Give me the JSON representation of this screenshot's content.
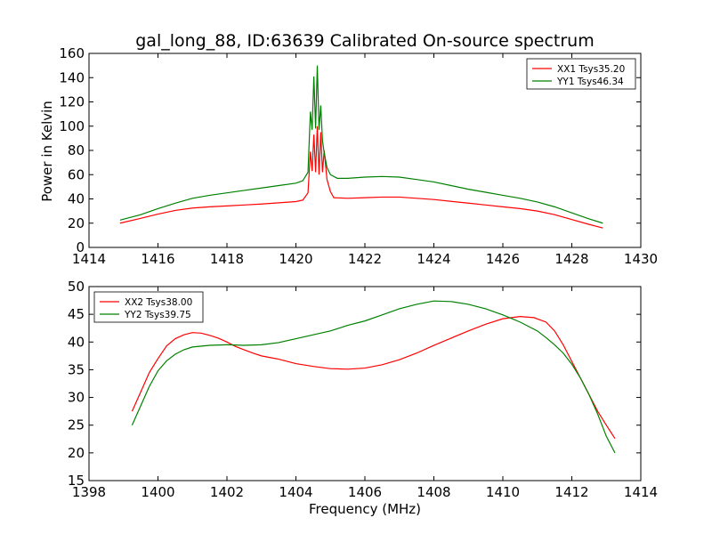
{
  "chart_data": [
    {
      "type": "line",
      "title": "gal_long_88, ID:63639 Calibrated On-source spectrum",
      "xlabel": "",
      "ylabel": "Power in Kelvin",
      "xlim": [
        1414,
        1430
      ],
      "ylim": [
        0,
        160
      ],
      "xticks": [
        1414,
        1416,
        1418,
        1420,
        1422,
        1424,
        1426,
        1428,
        1430
      ],
      "yticks": [
        0,
        20,
        40,
        60,
        80,
        100,
        120,
        140,
        160
      ],
      "legend_position": "top-right",
      "series": [
        {
          "name": "XX1 Tsys35.20",
          "color": "#ff0000",
          "points": [
            [
              1414.9,
              20
            ],
            [
              1415.5,
              24
            ],
            [
              1416,
              27.5
            ],
            [
              1416.5,
              30.5
            ],
            [
              1417,
              32.5
            ],
            [
              1417.5,
              33.5
            ],
            [
              1418,
              34.2
            ],
            [
              1418.5,
              35
            ],
            [
              1419,
              35.8
            ],
            [
              1419.5,
              36.8
            ],
            [
              1420,
              37.8
            ],
            [
              1420.2,
              39
            ],
            [
              1420.35,
              45
            ],
            [
              1420.42,
              79
            ],
            [
              1420.47,
              63
            ],
            [
              1420.52,
              93
            ],
            [
              1420.57,
              62
            ],
            [
              1420.62,
              100
            ],
            [
              1420.67,
              60
            ],
            [
              1420.72,
              95
            ],
            [
              1420.77,
              62
            ],
            [
              1420.82,
              80
            ],
            [
              1420.9,
              56
            ],
            [
              1421,
              46
            ],
            [
              1421.1,
              41
            ],
            [
              1421.5,
              40.5
            ],
            [
              1422,
              41
            ],
            [
              1422.5,
              41.5
            ],
            [
              1423,
              41.5
            ],
            [
              1423.5,
              40.5
            ],
            [
              1424,
              39.5
            ],
            [
              1424.5,
              38
            ],
            [
              1425,
              36.5
            ],
            [
              1425.5,
              35
            ],
            [
              1426,
              33.5
            ],
            [
              1426.5,
              32
            ],
            [
              1427,
              30
            ],
            [
              1427.5,
              27
            ],
            [
              1428,
              23
            ],
            [
              1428.5,
              19
            ],
            [
              1428.9,
              16
            ]
          ]
        },
        {
          "name": "YY1 Tsys46.34",
          "color": "#008000",
          "points": [
            [
              1414.9,
              22.5
            ],
            [
              1415.5,
              27
            ],
            [
              1416,
              32
            ],
            [
              1416.5,
              36.5
            ],
            [
              1417,
              40.5
            ],
            [
              1417.5,
              43
            ],
            [
              1418,
              45
            ],
            [
              1418.5,
              47
            ],
            [
              1419,
              49
            ],
            [
              1419.5,
              51
            ],
            [
              1420,
              53
            ],
            [
              1420.2,
              55
            ],
            [
              1420.35,
              62
            ],
            [
              1420.42,
              112
            ],
            [
              1420.47,
              97
            ],
            [
              1420.52,
              141
            ],
            [
              1420.57,
              98
            ],
            [
              1420.62,
              150
            ],
            [
              1420.67,
              97
            ],
            [
              1420.72,
              117
            ],
            [
              1420.77,
              88
            ],
            [
              1420.82,
              78
            ],
            [
              1420.9,
              66
            ],
            [
              1421,
              60
            ],
            [
              1421.2,
              57
            ],
            [
              1421.5,
              57
            ],
            [
              1422,
              58
            ],
            [
              1422.5,
              58.5
            ],
            [
              1423,
              58
            ],
            [
              1423.5,
              56
            ],
            [
              1424,
              54
            ],
            [
              1424.5,
              51
            ],
            [
              1425,
              48
            ],
            [
              1425.5,
              45.5
            ],
            [
              1426,
              43
            ],
            [
              1426.5,
              40.5
            ],
            [
              1427,
              37.5
            ],
            [
              1427.5,
              33.5
            ],
            [
              1428,
              28.5
            ],
            [
              1428.5,
              23.5
            ],
            [
              1428.9,
              20
            ]
          ]
        }
      ]
    },
    {
      "type": "line",
      "title": "",
      "xlabel": "Frequency (MHz)",
      "ylabel": "",
      "xlim": [
        1398,
        1414
      ],
      "ylim": [
        15,
        50
      ],
      "xticks": [
        1398,
        1400,
        1402,
        1404,
        1406,
        1408,
        1410,
        1412,
        1414
      ],
      "yticks": [
        15,
        20,
        25,
        30,
        35,
        40,
        45,
        50
      ],
      "legend_position": "top-left",
      "series": [
        {
          "name": "XX2 Tsys38.00",
          "color": "#ff0000",
          "points": [
            [
              1399.25,
              27.5
            ],
            [
              1399.5,
              31
            ],
            [
              1399.75,
              34.5
            ],
            [
              1400,
              37
            ],
            [
              1400.25,
              39.3
            ],
            [
              1400.5,
              40.6
            ],
            [
              1400.75,
              41.3
            ],
            [
              1401,
              41.7
            ],
            [
              1401.25,
              41.6
            ],
            [
              1401.5,
              41.2
            ],
            [
              1401.75,
              40.7
            ],
            [
              1402,
              40
            ],
            [
              1402.25,
              39.2
            ],
            [
              1402.5,
              38.6
            ],
            [
              1402.75,
              38
            ],
            [
              1403,
              37.5
            ],
            [
              1403.25,
              37.2
            ],
            [
              1403.5,
              36.9
            ],
            [
              1403.75,
              36.5
            ],
            [
              1404,
              36.1
            ],
            [
              1404.5,
              35.6
            ],
            [
              1405,
              35.2
            ],
            [
              1405.5,
              35.1
            ],
            [
              1406,
              35.3
            ],
            [
              1406.5,
              35.9
            ],
            [
              1407,
              36.8
            ],
            [
              1407.5,
              38
            ],
            [
              1408,
              39.4
            ],
            [
              1408.5,
              40.7
            ],
            [
              1409,
              42
            ],
            [
              1409.5,
              43.2
            ],
            [
              1410,
              44.2
            ],
            [
              1410.5,
              44.6
            ],
            [
              1410.9,
              44.4
            ],
            [
              1411.25,
              43.6
            ],
            [
              1411.5,
              42
            ],
            [
              1411.75,
              39.5
            ],
            [
              1412,
              36.5
            ],
            [
              1412.25,
              33.5
            ],
            [
              1412.5,
              30.5
            ],
            [
              1412.75,
              27.5
            ],
            [
              1413,
              25
            ],
            [
              1413.25,
              22.6
            ]
          ]
        },
        {
          "name": "YY2 Tsys39.75",
          "color": "#008000",
          "points": [
            [
              1399.25,
              25
            ],
            [
              1399.5,
              28.5
            ],
            [
              1399.75,
              32
            ],
            [
              1400,
              34.8
            ],
            [
              1400.25,
              36.6
            ],
            [
              1400.5,
              37.8
            ],
            [
              1400.75,
              38.6
            ],
            [
              1401,
              39.1
            ],
            [
              1401.5,
              39.4
            ],
            [
              1402,
              39.5
            ],
            [
              1402.5,
              39.4
            ],
            [
              1403,
              39.5
            ],
            [
              1403.5,
              39.9
            ],
            [
              1404,
              40.6
            ],
            [
              1404.5,
              41.3
            ],
            [
              1405,
              42
            ],
            [
              1405.5,
              43
            ],
            [
              1406,
              43.8
            ],
            [
              1406.5,
              44.9
            ],
            [
              1407,
              46
            ],
            [
              1407.5,
              46.8
            ],
            [
              1408,
              47.4
            ],
            [
              1408.5,
              47.3
            ],
            [
              1409,
              46.8
            ],
            [
              1409.5,
              46
            ],
            [
              1410,
              44.9
            ],
            [
              1410.5,
              43.6
            ],
            [
              1411,
              42
            ],
            [
              1411.25,
              40.8
            ],
            [
              1411.5,
              39.5
            ],
            [
              1411.75,
              38
            ],
            [
              1412,
              36
            ],
            [
              1412.25,
              33.5
            ],
            [
              1412.5,
              30.5
            ],
            [
              1412.75,
              27
            ],
            [
              1413,
              23
            ],
            [
              1413.25,
              20
            ]
          ]
        }
      ]
    }
  ]
}
